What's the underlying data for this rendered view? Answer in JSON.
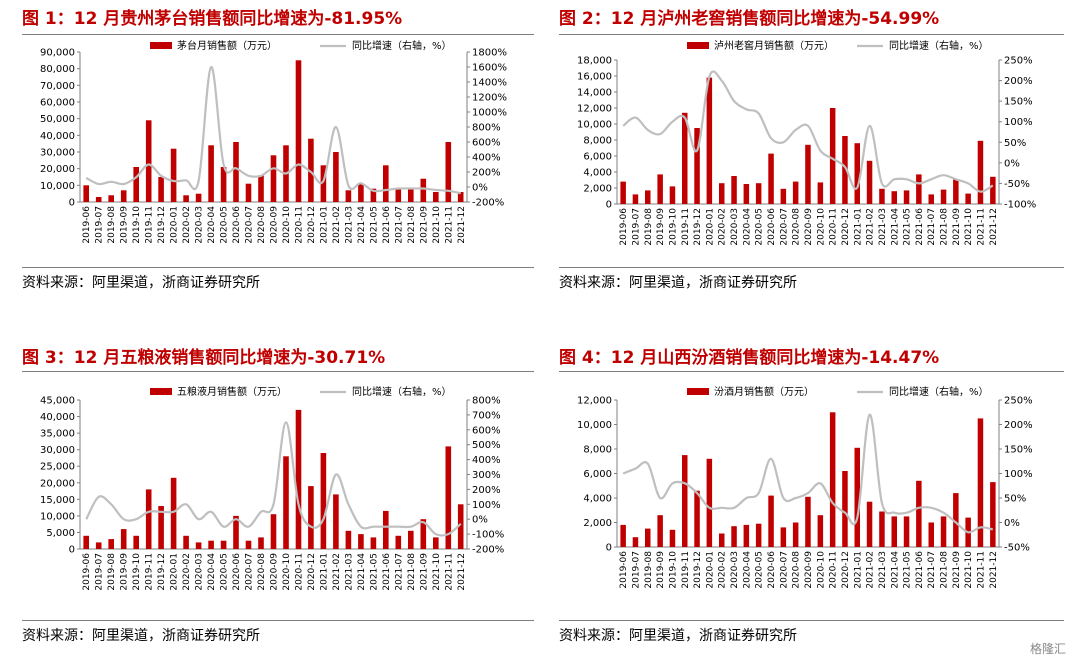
{
  "colors": {
    "bar": "#c00000",
    "line": "#bfbfbf",
    "title": "#c00000",
    "rule": "#7f7f7f"
  },
  "watermark": "格隆汇",
  "charts": [
    {
      "title": "图 1：12 月贵州茅台销售额同比增速为-81.95%",
      "source": "资料来源：阿里渠道，浙商证券研究所",
      "chart_data": {
        "type": "bar+line",
        "legend_bar": "茅台月销售额（万元）",
        "legend_line": "同比增速（右轴，%）",
        "categories": [
          "2019-06",
          "2019-07",
          "2019-08",
          "2019-09",
          "2019-10",
          "2019-11",
          "2019-12",
          "2020-01",
          "2020-02",
          "2020-03",
          "2020-04",
          "2020-05",
          "2020-06",
          "2020-07",
          "2020-08",
          "2020-09",
          "2020-10",
          "2020-11",
          "2020-12",
          "2021-01",
          "2021-02",
          "2021-03",
          "2021-04",
          "2021-05",
          "2021-06",
          "2021-07",
          "2021-08",
          "2021-09",
          "2021-10",
          "2021-11",
          "2021-12"
        ],
        "bars": [
          10000,
          3000,
          4000,
          7000,
          21000,
          49000,
          15000,
          32000,
          4000,
          5000,
          34000,
          21000,
          36000,
          11000,
          16000,
          28000,
          34000,
          85000,
          38000,
          22000,
          30000,
          7000,
          11000,
          8000,
          22000,
          8000,
          8000,
          14000,
          6000,
          36000,
          6000
        ],
        "growth": [
          120,
          40,
          70,
          40,
          130,
          300,
          150,
          80,
          90,
          80,
          1600,
          300,
          250,
          150,
          150,
          250,
          180,
          300,
          200,
          80,
          800,
          20,
          50,
          -50,
          -40,
          -20,
          -20,
          -20,
          -40,
          -50,
          -82
        ],
        "y_left": {
          "min": 0,
          "max": 90000,
          "step": 10000,
          "ticks": [
            "0",
            "10,000",
            "20,000",
            "30,000",
            "40,000",
            "50,000",
            "60,000",
            "70,000",
            "80,000",
            "90,000"
          ]
        },
        "y_right": {
          "min": -200,
          "max": 1800,
          "step": 200,
          "ticks": [
            "-200%",
            "0%",
            "200%",
            "400%",
            "600%",
            "800%",
            "1000%",
            "1200%",
            "1400%",
            "1600%",
            "1800%"
          ]
        }
      }
    },
    {
      "title": "图 2：12 月泸州老窖销售额同比增速为-54.99%",
      "source": "资料来源：阿里渠道，浙商证券研究所",
      "chart_data": {
        "type": "bar+line",
        "legend_bar": "泸州老窖月销售额（万元）",
        "legend_line": "同比增速（右轴，%）",
        "categories": [
          "2019-06",
          "2019-07",
          "2019-08",
          "2019-09",
          "2019-10",
          "2019-11",
          "2019-12",
          "2020-01",
          "2020-02",
          "2020-03",
          "2020-04",
          "2020-05",
          "2020-06",
          "2020-07",
          "2020-08",
          "2020-09",
          "2020-10",
          "2020-11",
          "2020-12",
          "2021-01",
          "2021-02",
          "2021-03",
          "2021-04",
          "2021-05",
          "2021-06",
          "2021-07",
          "2021-08",
          "2021-09",
          "2021-10",
          "2021-11",
          "2021-12"
        ],
        "bars": [
          2800,
          1200,
          1700,
          3700,
          2200,
          11400,
          9500,
          15800,
          2600,
          3500,
          2500,
          2600,
          6300,
          1900,
          2800,
          7400,
          2700,
          12000,
          8500,
          7600,
          5400,
          1900,
          1600,
          1700,
          3700,
          1200,
          1800,
          3100,
          1300,
          7900,
          3400
        ],
        "growth": [
          90,
          110,
          80,
          70,
          100,
          110,
          30,
          210,
          200,
          150,
          130,
          120,
          60,
          50,
          80,
          90,
          30,
          10,
          -10,
          -60,
          90,
          -50,
          -40,
          -40,
          -50,
          -40,
          -30,
          -40,
          -50,
          -70,
          -55
        ],
        "y_left": {
          "min": 0,
          "max": 18000,
          "step": 2000,
          "ticks": [
            "0",
            "2,000",
            "4,000",
            "6,000",
            "8,000",
            "10,000",
            "12,000",
            "14,000",
            "16,000",
            "18,000"
          ]
        },
        "y_right": {
          "min": -100,
          "max": 250,
          "step": 50,
          "ticks": [
            "-100%",
            "-50%",
            "0%",
            "50%",
            "100%",
            "150%",
            "200%",
            "250%"
          ]
        }
      }
    },
    {
      "title": "图 3：12 月五粮液销售额同比增速为-30.71%",
      "source": "资料来源：阿里渠道，浙商证券研究所",
      "chart_data": {
        "type": "bar+line",
        "legend_bar": "五粮液月销售额（万元）",
        "legend_line": "同比增速（右轴，%）",
        "categories": [
          "2019-06",
          "2019-07",
          "2019-08",
          "2019-09",
          "2019-10",
          "2019-11",
          "2019-12",
          "2020-01",
          "2020-02",
          "2020-03",
          "2020-04",
          "2020-05",
          "2020-06",
          "2020-07",
          "2020-08",
          "2020-09",
          "2020-10",
          "2020-11",
          "2020-12",
          "2021-01",
          "2021-02",
          "2021-03",
          "2021-04",
          "2021-05",
          "2021-06",
          "2021-07",
          "2021-08",
          "2021-09",
          "2021-10",
          "2021-11",
          "2021-12"
        ],
        "bars": [
          4000,
          2000,
          3000,
          6000,
          4000,
          18000,
          13000,
          21500,
          4000,
          2000,
          2500,
          2500,
          10000,
          2500,
          3500,
          10500,
          28000,
          42000,
          19000,
          29000,
          16500,
          5500,
          4500,
          3500,
          11500,
          4000,
          5500,
          9000,
          3500,
          31000,
          13500
        ],
        "growth": [
          0,
          150,
          100,
          0,
          0,
          50,
          50,
          50,
          100,
          0,
          50,
          -50,
          0,
          -50,
          50,
          100,
          650,
          100,
          -50,
          0,
          300,
          100,
          -50,
          -50,
          -50,
          -50,
          -50,
          -20,
          -100,
          -100,
          -31
        ],
        "y_left": {
          "min": 0,
          "max": 45000,
          "step": 5000,
          "ticks": [
            "0",
            "5,000",
            "10,000",
            "15,000",
            "20,000",
            "25,000",
            "30,000",
            "35,000",
            "40,000",
            "45,000"
          ]
        },
        "y_right": {
          "min": -200,
          "max": 800,
          "step": 100,
          "ticks": [
            "-200%",
            "-100%",
            "0%",
            "100%",
            "200%",
            "300%",
            "400%",
            "500%",
            "600%",
            "700%",
            "800%"
          ]
        }
      }
    },
    {
      "title": "图 4：12 月山西汾酒销售额同比增速为-14.47%",
      "source": "资料来源：阿里渠道，浙商证券研究所",
      "chart_data": {
        "type": "bar+line",
        "legend_bar": "汾酒月销售额（万元）",
        "legend_line": "同比增速（右轴，%）",
        "categories": [
          "2019-06",
          "2019-07",
          "2019-08",
          "2019-09",
          "2019-10",
          "2019-11",
          "2019-12",
          "2020-01",
          "2020-02",
          "2020-03",
          "2020-04",
          "2020-05",
          "2020-06",
          "2020-07",
          "2020-08",
          "2020-09",
          "2020-10",
          "2020-11",
          "2020-12",
          "2021-01",
          "2021-02",
          "2021-03",
          "2021-04",
          "2021-05",
          "2021-06",
          "2021-07",
          "2021-08",
          "2021-09",
          "2021-10",
          "2021-11",
          "2021-12"
        ],
        "bars": [
          1800,
          800,
          1500,
          2600,
          1400,
          7500,
          4600,
          7200,
          1100,
          1700,
          1800,
          1900,
          4200,
          1600,
          2000,
          4100,
          2600,
          11000,
          6200,
          8100,
          3700,
          2900,
          2500,
          2500,
          5400,
          2000,
          2500,
          4400,
          2400,
          10500,
          5300
        ],
        "growth": [
          100,
          110,
          120,
          50,
          80,
          80,
          60,
          30,
          30,
          30,
          50,
          60,
          130,
          50,
          50,
          60,
          80,
          40,
          20,
          10,
          220,
          40,
          20,
          20,
          30,
          30,
          20,
          0,
          -20,
          -10,
          -14
        ],
        "y_left": {
          "min": 0,
          "max": 12000,
          "step": 2000,
          "ticks": [
            "0",
            "2,000",
            "4,000",
            "6,000",
            "8,000",
            "10,000",
            "12,000"
          ]
        },
        "y_right": {
          "min": -50,
          "max": 250,
          "step": 50,
          "ticks": [
            "-50%",
            "0%",
            "50%",
            "100%",
            "150%",
            "200%",
            "250%"
          ]
        }
      }
    }
  ]
}
